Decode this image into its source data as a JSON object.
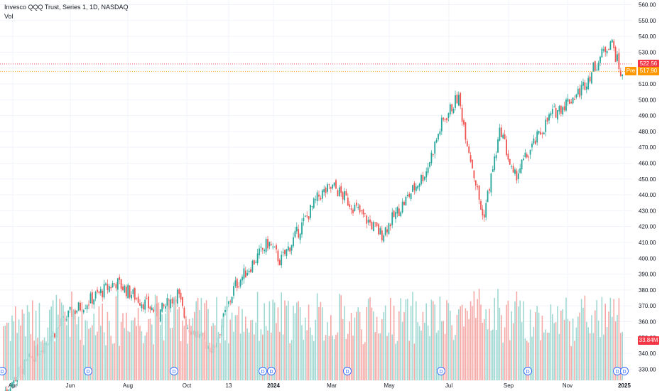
{
  "legend": {
    "title": "Invesco QQQ Trust, Series 1, 1D, NASDAQ",
    "indicator": "Vol"
  },
  "price_tags": {
    "last": "522.56",
    "pre_label": "Pre",
    "pre": "517.90",
    "volume": "33.84M"
  },
  "colors": {
    "up": "#26a69a",
    "down": "#ef5350",
    "up_volume": "#9fd8d2",
    "down_volume": "#f5a9a7",
    "last_tag": "#f23645",
    "pre_tag": "#ff9800",
    "grid": "#f0f3fa",
    "dividend_marker": "#2962ff"
  },
  "chart_data": {
    "type": "candlestick",
    "title": "Invesco QQQ Trust, Series 1, 1D, NASDAQ",
    "y_axis_labels": [
      "560.00",
      "550.00",
      "540.00",
      "530.00",
      "520.00",
      "510.00",
      "500.00",
      "490.00",
      "480.00",
      "470.00",
      "460.00",
      "450.00",
      "440.00",
      "430.00",
      "420.00",
      "410.00",
      "400.00",
      "390.00",
      "380.00",
      "370.00",
      "360.00",
      "350.00",
      "340.00",
      "330.00"
    ],
    "ylim": [
      323,
      562
    ],
    "x_axis_labels": [
      "Apr",
      "Jun",
      "Aug",
      "Oct",
      "13",
      "2024",
      "Mar",
      "May",
      "Jul",
      "Sep",
      "Nov",
      "2025"
    ],
    "date_range": [
      "2023-04",
      "2024-12-31"
    ],
    "grid": true,
    "close_anchors": [
      {
        "date": "2023-04",
        "close": 315
      },
      {
        "date": "2023-05",
        "close": 330
      },
      {
        "date": "2023-06",
        "close": 365
      },
      {
        "date": "2023-07",
        "close": 385
      },
      {
        "date": "2023-08",
        "close": 365
      },
      {
        "date": "2023-09",
        "close": 378
      },
      {
        "date": "2023-10",
        "close": 358
      },
      {
        "date": "2023-10-27",
        "close": 342
      },
      {
        "date": "2023-11",
        "close": 382
      },
      {
        "date": "2023-12",
        "close": 410
      },
      {
        "date": "2024-01",
        "close": 398
      },
      {
        "date": "2024-02",
        "close": 440
      },
      {
        "date": "2024-03",
        "close": 445
      },
      {
        "date": "2024-04",
        "close": 415
      },
      {
        "date": "2024-05",
        "close": 455
      },
      {
        "date": "2024-06",
        "close": 485
      },
      {
        "date": "2024-07",
        "close": 502
      },
      {
        "date": "2024-08-05",
        "close": 425
      },
      {
        "date": "2024-08",
        "close": 482
      },
      {
        "date": "2024-09",
        "close": 450
      },
      {
        "date": "2024-10",
        "close": 490
      },
      {
        "date": "2024-11",
        "close": 505
      },
      {
        "date": "2024-12",
        "close": 538
      },
      {
        "date": "2024-12-31",
        "close": 512
      }
    ],
    "last_price": 522.56,
    "premarket_price": 517.9,
    "volume_last": "33.84M",
    "dividend_markers": [
      "2023-03",
      "2023-06",
      "2023-09",
      "2023-12",
      "2023-12",
      "2024-03",
      "2024-06",
      "2024-09",
      "2024-12",
      "2024-12"
    ]
  }
}
